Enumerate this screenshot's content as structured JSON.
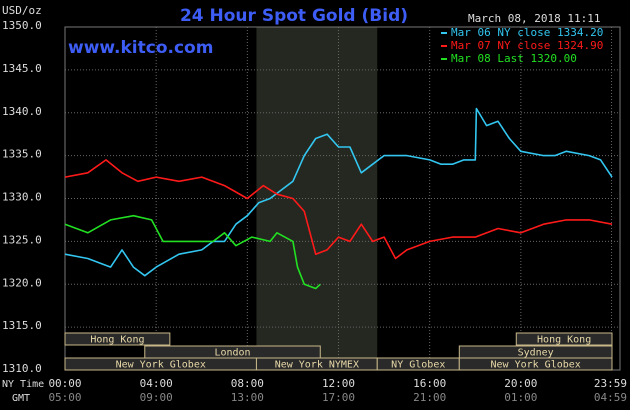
{
  "chart_data": {
    "type": "line",
    "title": "24 Hour Spot Gold (Bid)",
    "y_unit": "USD/oz",
    "watermark": "www.kitco.com",
    "timestamp": "March 08, 2018 11:11",
    "x_row_labels": [
      "NY Time",
      "GMT"
    ],
    "xlim": [
      0,
      24
    ],
    "xticks": [
      {
        "value": 0,
        "label": "00:00"
      },
      {
        "value": 4,
        "label": "04:00"
      },
      {
        "value": 8,
        "label": "08:00"
      },
      {
        "value": 12,
        "label": "12:00"
      },
      {
        "value": 16,
        "label": "16:00"
      },
      {
        "value": 20,
        "label": "20:00"
      },
      {
        "value": 23.98,
        "label": "23:59"
      }
    ],
    "x2ticks": [
      "05:00",
      "09:00",
      "13:00",
      "17:00",
      "21:00",
      "01:00",
      "04:59"
    ],
    "ylim": [
      1310,
      1350
    ],
    "yticks": [
      {
        "value": 1310,
        "label": "1310.0"
      },
      {
        "value": 1315,
        "label": "1315.0"
      },
      {
        "value": 1320,
        "label": "1320.0"
      },
      {
        "value": 1325,
        "label": "1325.0"
      },
      {
        "value": 1330,
        "label": "1330.0"
      },
      {
        "value": 1335,
        "label": "1335.0"
      },
      {
        "value": 1340,
        "label": "1340.0"
      },
      {
        "value": 1345,
        "label": "1345.0"
      },
      {
        "value": 1350,
        "label": "1350.0"
      }
    ],
    "grid": true,
    "legend": "top-right",
    "series": [
      {
        "name": "Mar 06 NY close 1334.20",
        "color": "#33c6f0",
        "x": [
          0,
          1,
          2,
          2.5,
          3,
          3.5,
          4,
          5,
          6,
          6.5,
          7,
          7.5,
          8,
          8.5,
          9,
          9.5,
          10,
          10.5,
          11,
          11.5,
          12,
          12.5,
          13,
          13.5,
          14,
          15,
          16,
          16.5,
          17,
          17.5,
          18,
          18.05,
          18.5,
          19,
          19.5,
          20,
          21,
          21.5,
          22,
          23,
          23.5,
          24
        ],
        "values": [
          1323.5,
          1323,
          1322,
          1324,
          1322,
          1321,
          1322,
          1323.5,
          1324,
          1325,
          1325,
          1327,
          1328,
          1329.5,
          1330,
          1331,
          1332,
          1335,
          1337,
          1337.5,
          1336,
          1336,
          1333,
          1334,
          1335,
          1335,
          1334.5,
          1334,
          1334,
          1334.5,
          1334.5,
          1340.5,
          1338.5,
          1339,
          1337,
          1335.5,
          1335,
          1335,
          1335.5,
          1335,
          1334.5,
          1332.5
        ]
      },
      {
        "name": "Mar 07 NY close 1324.90",
        "color": "#ff1a1a",
        "x": [
          0,
          1,
          1.8,
          2.5,
          3.2,
          4,
          5,
          6,
          7,
          8,
          8.7,
          9.3,
          10,
          10.5,
          11,
          11.5,
          12,
          12.5,
          13,
          13.5,
          14,
          14.5,
          15,
          16,
          17,
          18,
          19,
          20,
          21,
          22,
          23,
          24
        ],
        "values": [
          1332.5,
          1333,
          1334.5,
          1333,
          1332,
          1332.5,
          1332,
          1332.5,
          1331.5,
          1330,
          1331.5,
          1330.5,
          1330,
          1328.5,
          1323.5,
          1324,
          1325.5,
          1325,
          1327,
          1325,
          1325.5,
          1323,
          1324,
          1325,
          1325.5,
          1325.5,
          1326.5,
          1326,
          1327,
          1327.5,
          1327.5,
          1327
        ]
      },
      {
        "name": "Mar 08 Last 1320.00",
        "color": "#22e022",
        "x": [
          0,
          1,
          2,
          3,
          3.8,
          4.3,
          5,
          6,
          6.5,
          7,
          7.5,
          8.2,
          9,
          9.3,
          10,
          10.2,
          10.5,
          11,
          11.2
        ],
        "values": [
          1327,
          1326,
          1327.5,
          1328,
          1327.5,
          1325,
          1325,
          1325,
          1325,
          1326,
          1324.5,
          1325.5,
          1325,
          1326,
          1325,
          1322,
          1320,
          1319.5,
          1320
        ]
      }
    ],
    "sessions": [
      [
        {
          "label": "Hong Kong",
          "start": 0,
          "end": 4.6
        },
        {
          "label": "Hong Kong",
          "start": 19.8,
          "end": 24
        }
      ],
      [
        {
          "label": "London",
          "start": 3.5,
          "end": 11.2
        },
        {
          "label": "Sydney",
          "start": 17.3,
          "end": 24
        }
      ],
      [
        {
          "label": "New York Globex",
          "start": 0,
          "end": 8.4
        },
        {
          "label": "New York NYMEX",
          "start": 8.4,
          "end": 13.7
        },
        {
          "label": "NY Globex",
          "start": 13.7,
          "end": 17.3
        },
        {
          "label": "New York Globex",
          "start": 17.3,
          "end": 24
        }
      ]
    ]
  }
}
